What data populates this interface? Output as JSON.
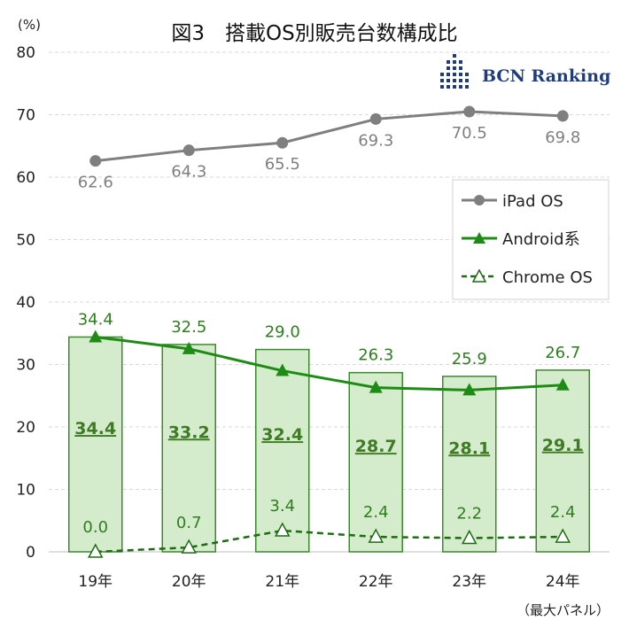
{
  "title": "図3　搭載OS別販売台数構成比",
  "unit_label": "(%)",
  "note": "（最大パネル）",
  "logo": {
    "text": "BCN Ranking"
  },
  "legend": {
    "items": [
      "iPad OS",
      "Android系",
      "Chrome OS"
    ]
  },
  "chart_data": {
    "type": "bar+line",
    "categories": [
      "19年",
      "20年",
      "21年",
      "22年",
      "23年",
      "24年"
    ],
    "ylim": [
      0,
      80
    ],
    "yticks": [
      0,
      10,
      20,
      30,
      40,
      50,
      60,
      70,
      80
    ],
    "grid": true,
    "legend_position": "right",
    "bars": {
      "name": "",
      "values": [
        34.4,
        33.2,
        32.4,
        28.7,
        28.1,
        29.1
      ],
      "labels": [
        "34.4",
        "33.2",
        "32.4",
        "28.7",
        "28.1",
        "29.1"
      ],
      "color": "#d4ebcc",
      "border": "#3c8a2e"
    },
    "series": [
      {
        "name": "iPad OS",
        "values": [
          62.6,
          64.3,
          65.5,
          69.3,
          70.5,
          69.8
        ],
        "labels": [
          "62.6",
          "64.3",
          "65.5",
          "69.3",
          "70.5",
          "69.8"
        ],
        "color": "#7f7f7f",
        "marker": "circle",
        "dash": false
      },
      {
        "name": "Android系",
        "values": [
          34.4,
          32.5,
          29.0,
          26.3,
          25.9,
          26.7
        ],
        "labels": [
          "34.4",
          "32.5",
          "29.0",
          "26.3",
          "25.9",
          "26.7"
        ],
        "color": "#1e8c14",
        "marker": "triangle",
        "dash": false
      },
      {
        "name": "Chrome OS",
        "values": [
          0.0,
          0.7,
          3.4,
          2.4,
          2.2,
          2.4
        ],
        "labels": [
          "0.0",
          "0.7",
          "3.4",
          "2.4",
          "2.2",
          "2.4"
        ],
        "color": "#1e6b14",
        "marker": "triangle-open",
        "dash": true
      }
    ]
  }
}
